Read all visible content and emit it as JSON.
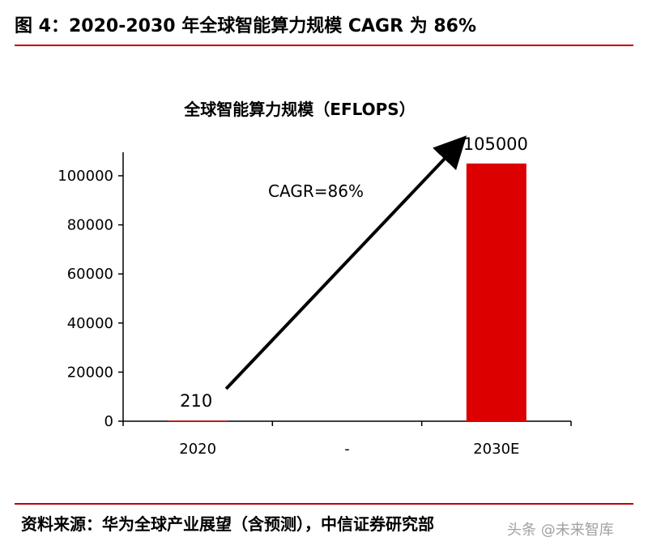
{
  "header": {
    "title": "图 4：2020-2030 年全球智能算力规模 CAGR 为 86%"
  },
  "footer": {
    "source": "资料来源：华为全球产业展望（含预测），中信证券研究部",
    "watermark": "头条 @未来智库"
  },
  "colors": {
    "accent": "#c00000",
    "bar": "#dd0000",
    "axis": "#000000",
    "arrow": "#000000"
  },
  "chart_data": {
    "type": "bar",
    "title": "全球智能算力规模（EFLOPS）",
    "xlabel": "",
    "ylabel": "",
    "categories": [
      "2020",
      "-",
      "2030E"
    ],
    "values": [
      210,
      null,
      105000
    ],
    "data_labels": [
      "210",
      "",
      "105000"
    ],
    "ylim": [
      0,
      110000
    ],
    "yticks": [
      0,
      20000,
      40000,
      60000,
      80000,
      100000
    ],
    "ytick_labels": [
      "0",
      "20000",
      "40000",
      "60000",
      "80000",
      "100000"
    ],
    "grid": false,
    "legend": "none",
    "annotation": {
      "text": "CAGR=86%",
      "type": "arrow",
      "from_category": "2020",
      "to_category": "2030E"
    }
  }
}
